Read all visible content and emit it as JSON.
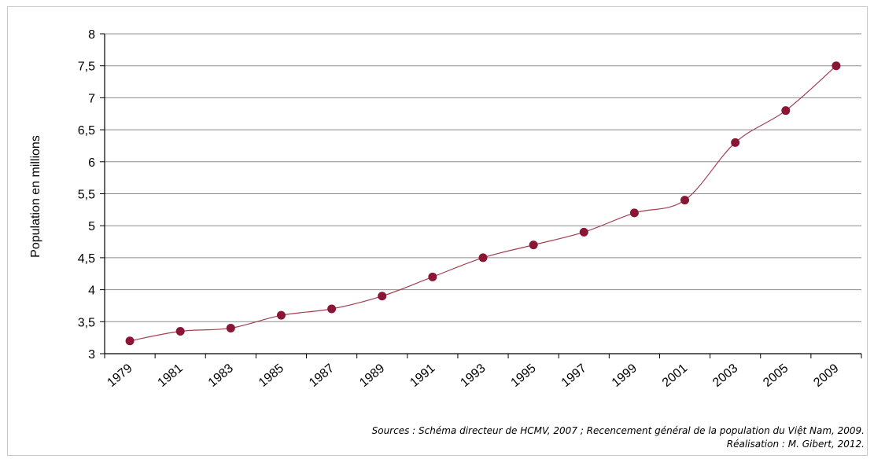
{
  "chart_data": {
    "type": "line",
    "categories": [
      "1979",
      "1981",
      "1983",
      "1985",
      "1987",
      "1989",
      "1991",
      "1993",
      "1995",
      "1997",
      "1999",
      "2001",
      "2003",
      "2005",
      "2009"
    ],
    "series": [
      {
        "values": [
          3.2,
          3.35,
          3.4,
          3.6,
          3.7,
          3.9,
          4.2,
          4.5,
          4.7,
          4.9,
          5.2,
          5.4,
          6.3,
          6.8,
          7.5
        ]
      }
    ],
    "ylabel": "Population en millions",
    "xlabel": "",
    "ylim": [
      3,
      8
    ],
    "yticks": [
      "3",
      "3,5",
      "4",
      "4,5",
      "5",
      "5,5",
      "6",
      "6,5",
      "7",
      "7,5",
      "8"
    ],
    "grid": true,
    "colors": {
      "line": "#a04050",
      "marker": "#8b1535",
      "grid": "#8c8c8c"
    }
  },
  "source": {
    "line1": "Sources : Schéma directeur de HCMV, 2007 ; Recencement général de la population du Việt Nam, 2009.",
    "line2": "Réalisation : M. Gibert, 2012."
  }
}
